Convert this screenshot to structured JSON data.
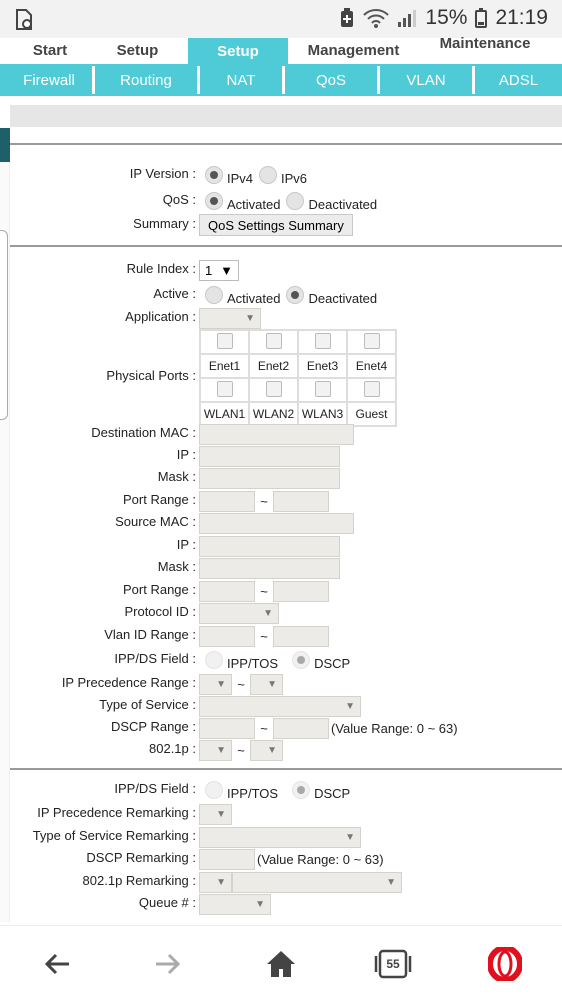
{
  "status_bar": {
    "battery": "15%",
    "time": "21:19"
  },
  "main_tabs": [
    "Start",
    "Setup",
    "Setup",
    "Management",
    "Maintenance"
  ],
  "sub_tabs": [
    "Firewall",
    "Routing",
    "NAT",
    "QoS",
    "VLAN",
    "ADSL"
  ],
  "general": {
    "ip_version_label": "IP Version :",
    "ipv4": "IPv4",
    "ipv6": "IPv6",
    "qos_label": "QoS :",
    "activated": "Activated",
    "deactivated": "Deactivated",
    "summary_label": "Summary :",
    "summary_button": "QoS Settings Summary"
  },
  "rule": {
    "rule_index_label": "Rule Index :",
    "rule_index_value": "1",
    "active_label": "Active :",
    "activated": "Activated",
    "deactivated": "Deactivated",
    "application_label": "Application :",
    "physical_ports_label": "Physical Ports :",
    "ports_row1": [
      "Enet1",
      "Enet2",
      "Enet3",
      "Enet4"
    ],
    "ports_row2": [
      "WLAN1",
      "WLAN2",
      "WLAN3",
      "Guest"
    ],
    "dest_mac_label": "Destination MAC :",
    "ip_label": "IP :",
    "mask_label": "Mask :",
    "port_range_label": "Port Range :",
    "source_mac_label": "Source MAC :",
    "protocol_id_label": "Protocol ID :",
    "vlan_id_range_label": "Vlan ID Range :",
    "ipp_ds_label": "IPP/DS Field :",
    "ipp_tos": "IPP/TOS",
    "dscp": "DSCP",
    "ip_prec_range_label": "IP Precedence Range :",
    "tos_label": "Type of Service :",
    "dscp_range_label": "DSCP Range :",
    "dscp_range_hint": "(Value Range: 0 ~ 63)",
    "dot1p_label": "802.1p :",
    "tilde": "~"
  },
  "remark": {
    "ipp_ds_label": "IPP/DS Field :",
    "ipp_tos": "IPP/TOS",
    "dscp": "DSCP",
    "ip_prec_remark_label": "IP Precedence Remarking :",
    "tos_remark_label": "Type of Service Remarking :",
    "dscp_remark_label": "DSCP Remarking :",
    "dscp_remark_hint": "(Value Range: 0 ~ 63)",
    "dot1p_remark_label": "802.1p Remarking :",
    "queue_label": "Queue # :"
  },
  "bottom_nav": {
    "tabs_count": "55"
  },
  "colors": {
    "accent": "#4fcbd7",
    "dark_accent": "#1e5f69",
    "opera_red": "#e0101e"
  }
}
